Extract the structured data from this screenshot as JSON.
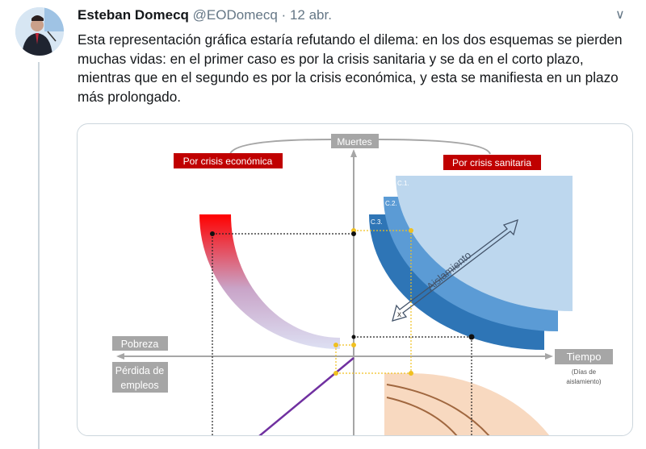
{
  "tweet": {
    "author_name": "Esteban Domecq",
    "handle": "@EODomecq",
    "separator": "·",
    "date": "12 abr.",
    "text": "Esta representación gráfica estaría refutando el dilema: en los dos esquemas se pierden muchas vidas: en el primer caso es por la crisis sanitaria y se da en el corto plazo, mientras que en el segundo es por la crisis económica, y esta se manifiesta en un plazo más prolongado.",
    "menu_icon": "chevron-down-icon"
  },
  "diagram": {
    "y_axis_label": "Muertes",
    "left_label": "Por crisis económica",
    "right_label": "Por crisis sanitaria",
    "curve_labels": [
      "C.1.",
      "C.2.",
      "C.3."
    ],
    "arrow_label": "Aislamiento",
    "arrow_end_mark": "x",
    "left_axis_upper": "Pobreza",
    "left_axis_lower_1": "Pérdida de",
    "left_axis_lower_2": "empleos",
    "x_axis_label": "Tiempo",
    "x_axis_sub_1": "(Días de",
    "x_axis_sub_2": "aislamiento)",
    "colors": {
      "red_label": "#c00000",
      "gray_label": "#a6a6a6",
      "c1": "#bdd7ee",
      "c2": "#5b9bd5",
      "c3": "#2e75b6",
      "purple_line": "#7030a0",
      "orange_area": "#f8d9c0"
    }
  }
}
